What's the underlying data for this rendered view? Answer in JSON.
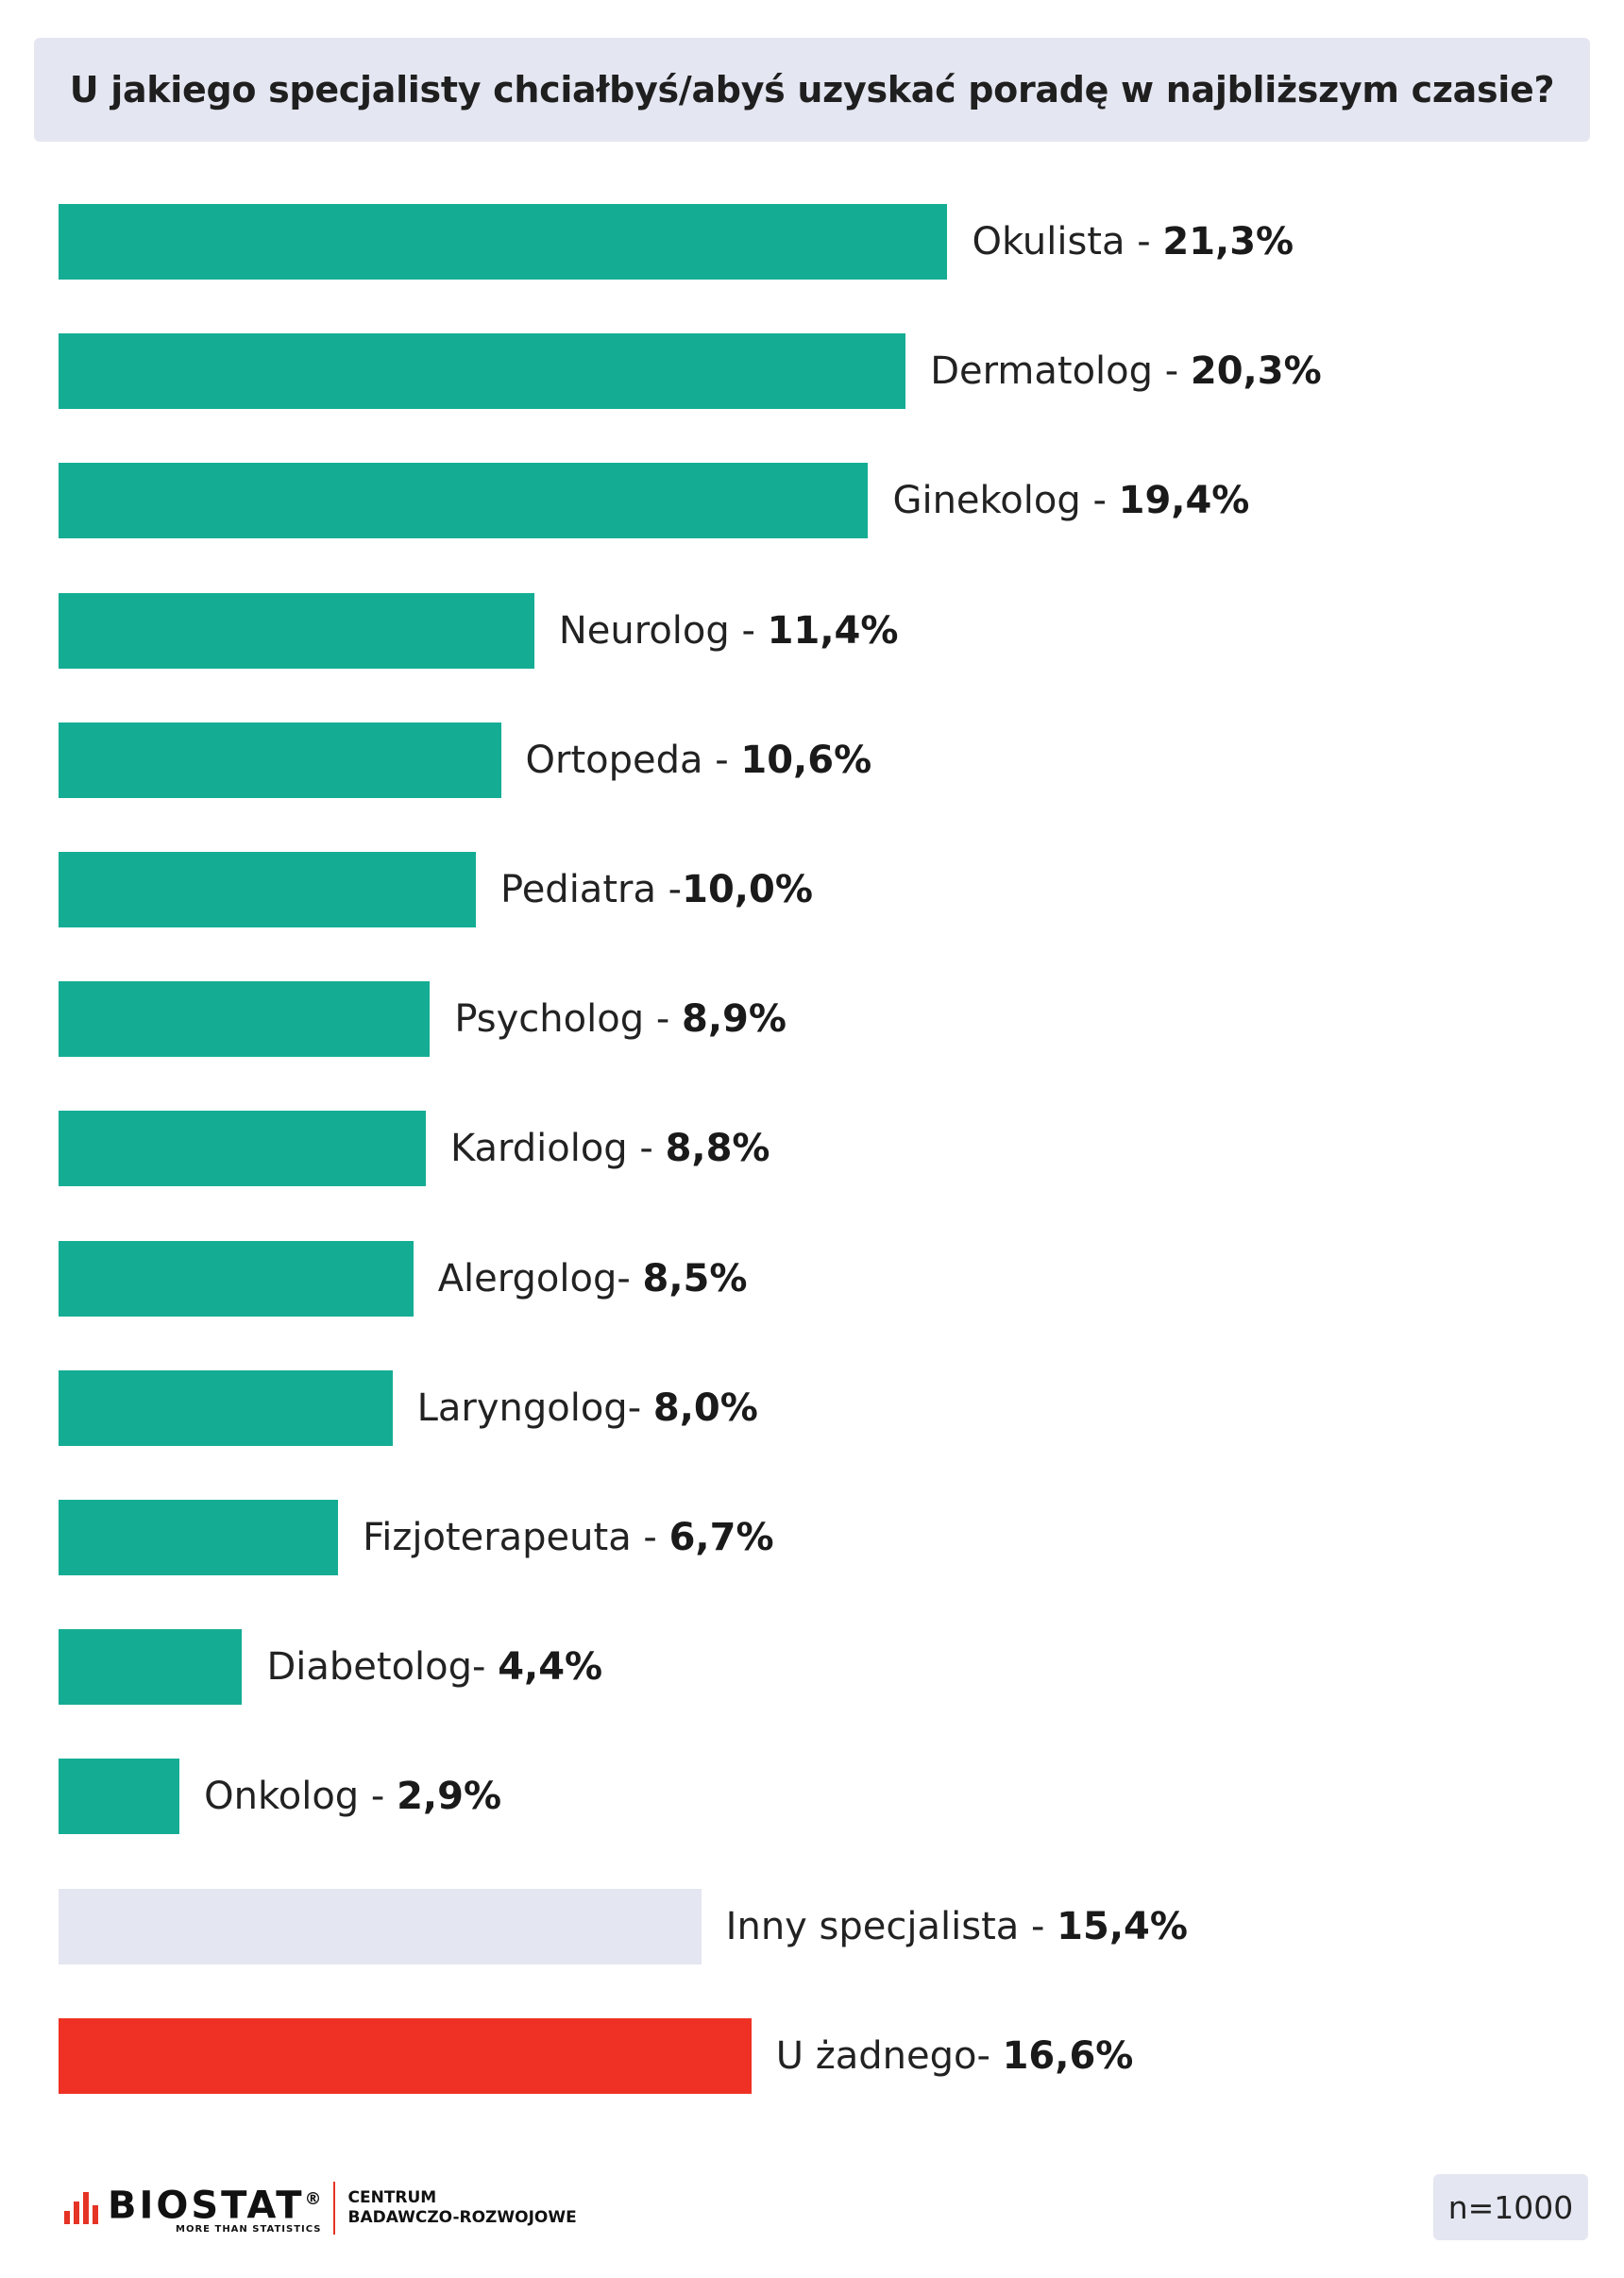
{
  "chart_data": {
    "type": "bar",
    "orientation": "horizontal",
    "title": "U jakiego specjalisty chciałbyś/abyś uzyskać poradę w najbliższym czasie?",
    "categories": [
      "Okulista",
      "Dermatolog",
      "Ginekolog",
      "Neurolog",
      "Ortopeda",
      "Pediatra",
      "Psycholog",
      "Kardiolog",
      "Alergolog",
      "Laryngolog",
      "Fizjoterapeuta",
      "Diabetolog",
      "Onkolog",
      "Inny specjalista",
      "U żadnego"
    ],
    "separators": [
      " - ",
      " - ",
      " - ",
      " - ",
      " - ",
      " -",
      " - ",
      " - ",
      "- ",
      "- ",
      " - ",
      "- ",
      " - ",
      " - ",
      "- "
    ],
    "value_labels": [
      "21,3%",
      "20,3%",
      "19,4%",
      "11,4%",
      "10,6%",
      "10,0%",
      "8,9%",
      "8,8%",
      "8,5%",
      "8,0%",
      "6,7%",
      "4,4%",
      "2,9%",
      "15,4%",
      "16,6%"
    ],
    "values": [
      21.3,
      20.3,
      19.4,
      11.4,
      10.6,
      10.0,
      8.9,
      8.8,
      8.5,
      8.0,
      6.7,
      4.4,
      2.9,
      15.4,
      16.6
    ],
    "bar_colors": [
      "#14ad94",
      "#14ad94",
      "#14ad94",
      "#14ad94",
      "#14ad94",
      "#14ad94",
      "#14ad94",
      "#14ad94",
      "#14ad94",
      "#14ad94",
      "#14ad94",
      "#14ad94",
      "#14ad94",
      "#e4e6f1",
      "#ee3124"
    ],
    "unit": "%"
  },
  "footer": {
    "logo_name": "BIOSTAT",
    "logo_registered": "®",
    "logo_tagline": "MORE THAN STATISTICS",
    "centre_line1": "CENTRUM",
    "centre_line2": "BADAWCZO-ROZWOJOWE",
    "sample_size": "n=1000"
  }
}
